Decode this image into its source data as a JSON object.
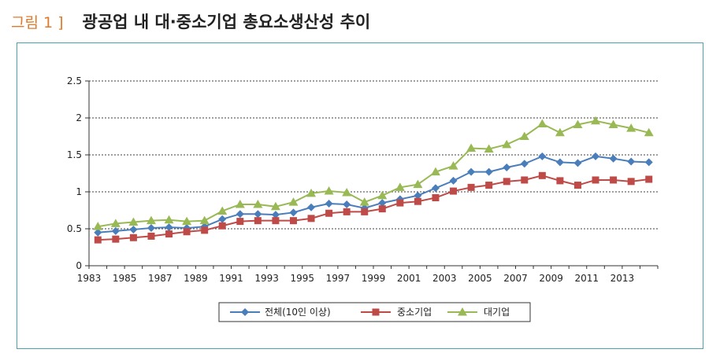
{
  "figure": {
    "label": "그림 1 ]",
    "title": "광공업 내 대·중소기업 총요소생산성 추이"
  },
  "chart_data": {
    "type": "line",
    "title": "광공업 내 대·중소기업 총요소생산성 추이",
    "xlabel": "",
    "ylabel": "",
    "ylim": [
      0,
      2.5
    ],
    "xlim": [
      1983,
      2015
    ],
    "y_ticks": [
      "0",
      "0.5",
      "1",
      "1.5",
      "2",
      "2.5"
    ],
    "x_ticks": [
      "1983",
      "1985",
      "1987",
      "1989",
      "1991",
      "1993",
      "1995",
      "1997",
      "1999",
      "2001",
      "2003",
      "2005",
      "2007",
      "2009",
      "2011",
      "2013"
    ],
    "grid": "horizontal",
    "legend_position": "bottom",
    "x": [
      1983.5,
      1984.5,
      1985.5,
      1986.5,
      1987.5,
      1988.5,
      1989.5,
      1990.5,
      1991.5,
      1992.5,
      1993.5,
      1994.5,
      1995.5,
      1996.5,
      1997.5,
      1998.5,
      1999.5,
      2000.5,
      2001.5,
      2002.5,
      2003.5,
      2004.5,
      2005.5,
      2006.5,
      2007.5,
      2008.5,
      2009.5,
      2010.5,
      2011.5,
      2012.5,
      2013.5,
      2014.5
    ],
    "series": [
      {
        "name": "전체(10인 이상)",
        "color": "#4a7ebb",
        "marker": "diamond",
        "values": [
          0.45,
          0.47,
          0.49,
          0.51,
          0.52,
          0.51,
          0.53,
          0.63,
          0.7,
          0.7,
          0.69,
          0.72,
          0.79,
          0.84,
          0.83,
          0.78,
          0.85,
          0.9,
          0.95,
          1.05,
          1.15,
          1.27,
          1.27,
          1.33,
          1.38,
          1.48,
          1.4,
          1.39,
          1.48,
          1.45,
          1.41,
          1.4
        ]
      },
      {
        "name": "중소기업",
        "color": "#be4b48",
        "marker": "square",
        "values": [
          0.35,
          0.36,
          0.38,
          0.4,
          0.43,
          0.46,
          0.48,
          0.54,
          0.6,
          0.61,
          0.61,
          0.61,
          0.64,
          0.71,
          0.73,
          0.73,
          0.77,
          0.85,
          0.87,
          0.92,
          1.01,
          1.06,
          1.09,
          1.14,
          1.16,
          1.22,
          1.15,
          1.09,
          1.16,
          1.16,
          1.14,
          1.17
        ]
      },
      {
        "name": "대기업",
        "color": "#98b954",
        "marker": "triangle",
        "values": [
          0.53,
          0.57,
          0.59,
          0.61,
          0.62,
          0.6,
          0.61,
          0.74,
          0.83,
          0.83,
          0.8,
          0.86,
          0.98,
          1.01,
          0.99,
          0.86,
          0.95,
          1.06,
          1.1,
          1.27,
          1.35,
          1.59,
          1.58,
          1.64,
          1.75,
          1.92,
          1.8,
          1.91,
          1.96,
          1.91,
          1.86,
          1.8
        ]
      }
    ]
  }
}
